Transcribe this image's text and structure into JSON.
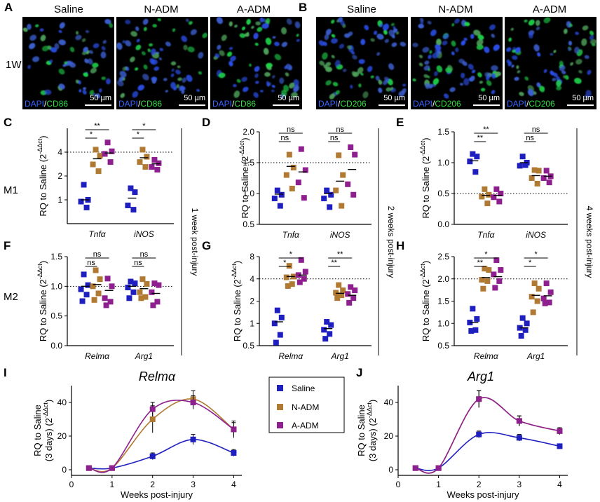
{
  "microscopy": {
    "A": {
      "letter": "A",
      "row_label": "1W",
      "columns": [
        "Saline",
        "N-ADM",
        "A-ADM"
      ],
      "stain": {
        "dapi": "DAPI",
        "slash": "/",
        "marker": "CD86"
      },
      "scale": "50 µm"
    },
    "B": {
      "letter": "B",
      "columns": [
        "Saline",
        "N-ADM",
        "A-ADM"
      ],
      "stain": {
        "dapi": "DAPI",
        "slash": "/",
        "marker": "CD206"
      },
      "scale": "50 µm"
    }
  },
  "row_labels": {
    "m1": "M1",
    "m2": "M2"
  },
  "timepoints": {
    "w1": "1 week post-injury",
    "w2": "2 weeks post-injury",
    "w4": "4 weeks post-injury"
  },
  "ylabel_rq": "RQ to Saline (2",
  "ylabel_exp": "-ΔΔct",
  "ylabel_close": ")",
  "dotted_line_label": "",
  "colors": {
    "saline": "#1f1fbf",
    "nadm": "#b07a33",
    "aadm": "#8e1f8e"
  },
  "chart_data": [
    {
      "panel": "C",
      "type": "scatter",
      "scale": "log2",
      "ylim": [
        0.5,
        8
      ],
      "yticks": [
        "1",
        "2",
        "4"
      ],
      "ytick_values": [
        1,
        2,
        4
      ],
      "ref_line": 4,
      "genes": [
        "Tnfα",
        "iNOS"
      ],
      "groups": [
        {
          "saline": [
            1.55,
            1.0,
            0.95,
            0.8
          ],
          "nadm": [
            4.3,
            3.6,
            2.8,
            2.3
          ],
          "aadm": [
            5.3,
            4.1,
            3.8,
            3.0
          ],
          "means": [
            1.0,
            3.3,
            3.9
          ]
        },
        {
          "saline": [
            1.4,
            1.25,
            0.85,
            0.75
          ],
          "nadm": [
            4.3,
            3.5,
            3.0,
            2.6
          ],
          "aadm": [
            3.2,
            2.9,
            2.6,
            2.4
          ],
          "means": [
            1.05,
            3.4,
            2.85
          ]
        }
      ],
      "brackets": [
        {
          "group": 0,
          "to": "nadm",
          "label": "*"
        },
        {
          "group": 0,
          "to": "aadm",
          "label": "**"
        },
        {
          "group": 1,
          "to": "nadm",
          "label": "*"
        },
        {
          "group": 1,
          "to": "aadm",
          "label": "*"
        }
      ]
    },
    {
      "panel": "D",
      "type": "scatter",
      "scale": "linear",
      "ylim": [
        0.5,
        2.0
      ],
      "yticks": [
        "0.5",
        "1.0",
        "1.5",
        "2.0"
      ],
      "ytick_values": [
        0.5,
        1.0,
        1.5,
        2.0
      ],
      "ref_line": 1.5,
      "genes": [
        "Tnfα",
        "iNOS"
      ],
      "groups": [
        {
          "saline": [
            1.05,
            0.98,
            0.92,
            0.8
          ],
          "nadm": [
            1.63,
            1.42,
            1.3,
            1.08
          ],
          "aadm": [
            1.72,
            1.38,
            1.18,
            0.93
          ],
          "means": [
            0.99,
            1.44,
            1.35
          ]
        },
        {
          "saline": [
            1.05,
            0.98,
            0.92,
            0.78
          ],
          "nadm": [
            1.62,
            1.3,
            1.05,
            0.8
          ],
          "aadm": [
            1.75,
            1.63,
            1.15,
            0.98
          ],
          "means": [
            1.0,
            1.2,
            1.39
          ]
        }
      ],
      "brackets": [
        {
          "group": 0,
          "to": "nadm",
          "label": "ns"
        },
        {
          "group": 0,
          "to": "aadm",
          "label": "ns"
        },
        {
          "group": 1,
          "to": "nadm",
          "label": "ns"
        },
        {
          "group": 1,
          "to": "aadm",
          "label": "ns"
        }
      ]
    },
    {
      "panel": "E",
      "type": "scatter",
      "scale": "linear",
      "ylim": [
        0.0,
        1.5
      ],
      "yticks": [
        "0.0",
        "0.5",
        "1.0",
        "1.5"
      ],
      "ytick_values": [
        0.0,
        0.5,
        1.0,
        1.5
      ],
      "ref_line": 0.5,
      "genes": [
        "Tnfα",
        "iNOS"
      ],
      "groups": [
        {
          "saline": [
            1.14,
            1.1,
            1.02,
            0.85
          ],
          "nadm": [
            0.57,
            0.48,
            0.45,
            0.34
          ],
          "aadm": [
            0.57,
            0.5,
            0.44,
            0.37
          ],
          "means": [
            1.03,
            0.47,
            0.47
          ]
        },
        {
          "saline": [
            1.1,
            1.0,
            0.95,
            0.96
          ],
          "nadm": [
            0.88,
            0.87,
            0.75,
            0.66
          ],
          "aadm": [
            0.87,
            0.78,
            0.75,
            0.68
          ],
          "means": [
            1.0,
            0.79,
            0.78
          ]
        }
      ],
      "brackets": [
        {
          "group": 0,
          "to": "nadm",
          "label": "**"
        },
        {
          "group": 0,
          "to": "aadm",
          "label": "**"
        },
        {
          "group": 1,
          "to": "nadm",
          "label": "ns"
        },
        {
          "group": 1,
          "to": "aadm",
          "label": "ns"
        }
      ]
    },
    {
      "panel": "F",
      "type": "scatter",
      "scale": "linear",
      "ylim": [
        0.0,
        1.5
      ],
      "yticks": [
        "0.0",
        "0.5",
        "1.0",
        "1.5"
      ],
      "ytick_values": [
        0.0,
        0.5,
        1.0,
        1.5
      ],
      "ref_line": 1.0,
      "genes": [
        "Relmα",
        "Arg1"
      ],
      "groups": [
        {
          "saline": [
            1.2,
            1.02,
            0.95,
            0.86,
            0.75
          ],
          "nadm": [
            1.27,
            1.12,
            1.0,
            0.88,
            0.77
          ],
          "aadm": [
            1.13,
            1.0,
            0.8,
            0.74,
            0.68
          ],
          "means": [
            1.0,
            1.03,
            0.93
          ]
        },
        {
          "saline": [
            1.08,
            1.05,
            0.98,
            0.9,
            0.8
          ],
          "nadm": [
            1.12,
            1.04,
            0.9,
            0.82,
            0.8
          ],
          "aadm": [
            1.05,
            1.02,
            0.9,
            0.74,
            0.68
          ],
          "means": [
            1.0,
            0.96,
            0.88
          ]
        }
      ],
      "brackets": [
        {
          "group": 0,
          "to": "nadm",
          "label": "ns"
        },
        {
          "group": 0,
          "to": "aadm",
          "label": "ns"
        },
        {
          "group": 1,
          "to": "nadm",
          "label": "ns"
        },
        {
          "group": 1,
          "to": "aadm",
          "label": "ns"
        }
      ]
    },
    {
      "panel": "G",
      "type": "scatter",
      "scale": "log2",
      "ylim": [
        0.5,
        8
      ],
      "yticks": [
        "0.5",
        "1",
        "2",
        "4",
        "8"
      ],
      "ytick_values": [
        0.5,
        1,
        2,
        4,
        8
      ],
      "ref_line": 4,
      "genes": [
        "Relmα",
        "Arg1"
      ],
      "groups": [
        {
          "saline": [
            1.5,
            1.2,
            1.0,
            0.7,
            0.55
          ],
          "nadm": [
            6.0,
            4.3,
            4.2,
            3.4,
            3.2
          ],
          "aadm": [
            7.2,
            5.0,
            4.5,
            4.0,
            3.6
          ],
          "means": [
            1.05,
            4.3,
            4.5
          ]
        },
        {
          "saline": [
            1.05,
            0.95,
            0.82,
            0.72,
            0.62
          ],
          "nadm": [
            3.3,
            2.8,
            2.6,
            2.4,
            2.2
          ],
          "aadm": [
            3.1,
            2.8,
            2.5,
            2.2,
            1.9
          ],
          "means": [
            0.85,
            2.55,
            2.4
          ]
        }
      ],
      "brackets": [
        {
          "group": 0,
          "to": "nadm",
          "label": "*"
        },
        {
          "group": 0,
          "to": "aadm",
          "label": "*"
        },
        {
          "group": 1,
          "to": "nadm",
          "label": "**"
        },
        {
          "group": 1,
          "to": "aadm",
          "label": "**"
        }
      ]
    },
    {
      "panel": "H",
      "type": "scatter",
      "scale": "linear",
      "ylim": [
        0.5,
        2.5
      ],
      "yticks": [
        "0.5",
        "1.0",
        "1.5",
        "2.0",
        "2.5"
      ],
      "ytick_values": [
        0.5,
        1.0,
        1.5,
        2.0,
        2.5
      ],
      "ref_line": 2.0,
      "genes": [
        "Relmα",
        "Arg1"
      ],
      "groups": [
        {
          "saline": [
            1.33,
            1.1,
            1.02,
            0.85,
            0.83
          ],
          "nadm": [
            2.23,
            2.2,
            1.98,
            1.95,
            1.78
          ],
          "aadm": [
            2.42,
            2.2,
            2.1,
            1.95,
            1.8
          ],
          "means": [
            1.02,
            2.03,
            2.05
          ]
        },
        {
          "saline": [
            1.12,
            1.0,
            0.9,
            0.85,
            0.72
          ],
          "nadm": [
            1.9,
            1.78,
            1.6,
            1.5,
            1.25
          ],
          "aadm": [
            1.9,
            1.7,
            1.56,
            1.47,
            1.45
          ],
          "means": [
            0.9,
            1.63,
            1.62
          ]
        }
      ],
      "brackets": [
        {
          "group": 0,
          "to": "nadm",
          "label": "**"
        },
        {
          "group": 0,
          "to": "aadm",
          "label": "*"
        },
        {
          "group": 1,
          "to": "nadm",
          "label": "*"
        },
        {
          "group": 1,
          "to": "aadm",
          "label": "*"
        }
      ]
    },
    {
      "panel": "I",
      "type": "line",
      "title": "Relmα",
      "xlabel": "Weeks post-injury",
      "ylabel_line1": "RQ to Saline",
      "ylabel_line2": "(3 days) (2",
      "xlim": [
        0,
        4.2
      ],
      "ylim": [
        0,
        50
      ],
      "xticks": [
        0,
        1,
        2,
        3,
        4
      ],
      "yticks": [
        0,
        20,
        40
      ],
      "x": [
        0.43,
        1,
        2,
        3,
        4
      ],
      "series": [
        {
          "name": "Saline",
          "key": "saline",
          "values": [
            1,
            1,
            8,
            18,
            10
          ],
          "err": [
            1,
            1,
            2,
            3,
            2
          ]
        },
        {
          "name": "N-ADM",
          "key": "nadm",
          "values": [
            1,
            1,
            30,
            42,
            24
          ],
          "err": [
            1,
            1,
            8,
            5,
            5
          ]
        },
        {
          "name": "A-ADM",
          "key": "aadm",
          "values": [
            1,
            1,
            36,
            40,
            24
          ],
          "err": [
            1,
            1,
            4,
            4,
            4
          ]
        }
      ]
    },
    {
      "panel": "J",
      "type": "line",
      "title": "Arg1",
      "xlabel": "Weeks post-injury",
      "ylabel_line1": "RQ to Saline",
      "ylabel_line2": "(3 days) (2",
      "xlim": [
        0,
        4.2
      ],
      "ylim": [
        0,
        50
      ],
      "xticks": [
        0,
        1,
        2,
        3,
        4
      ],
      "yticks": [
        0,
        20,
        40
      ],
      "x": [
        0.43,
        1,
        2,
        3,
        4
      ],
      "series": [
        {
          "name": "Saline",
          "key": "saline",
          "values": [
            1,
            1,
            21,
            19,
            14
          ],
          "err": [
            1,
            1,
            2,
            2,
            1
          ]
        },
        {
          "name": "N-ADM",
          "key": "nadm",
          "values": [
            1,
            1,
            42,
            29,
            23
          ],
          "err": [
            1,
            1,
            5,
            3,
            2
          ]
        },
        {
          "name": "A-ADM",
          "key": "aadm",
          "values": [
            1,
            1,
            42,
            29,
            23
          ],
          "err": [
            1,
            1,
            5,
            3,
            2
          ]
        }
      ]
    }
  ],
  "legend": {
    "items": [
      {
        "key": "saline",
        "label": "Saline"
      },
      {
        "key": "nadm",
        "label": "N-ADM"
      },
      {
        "key": "aadm",
        "label": "A-ADM"
      }
    ]
  }
}
